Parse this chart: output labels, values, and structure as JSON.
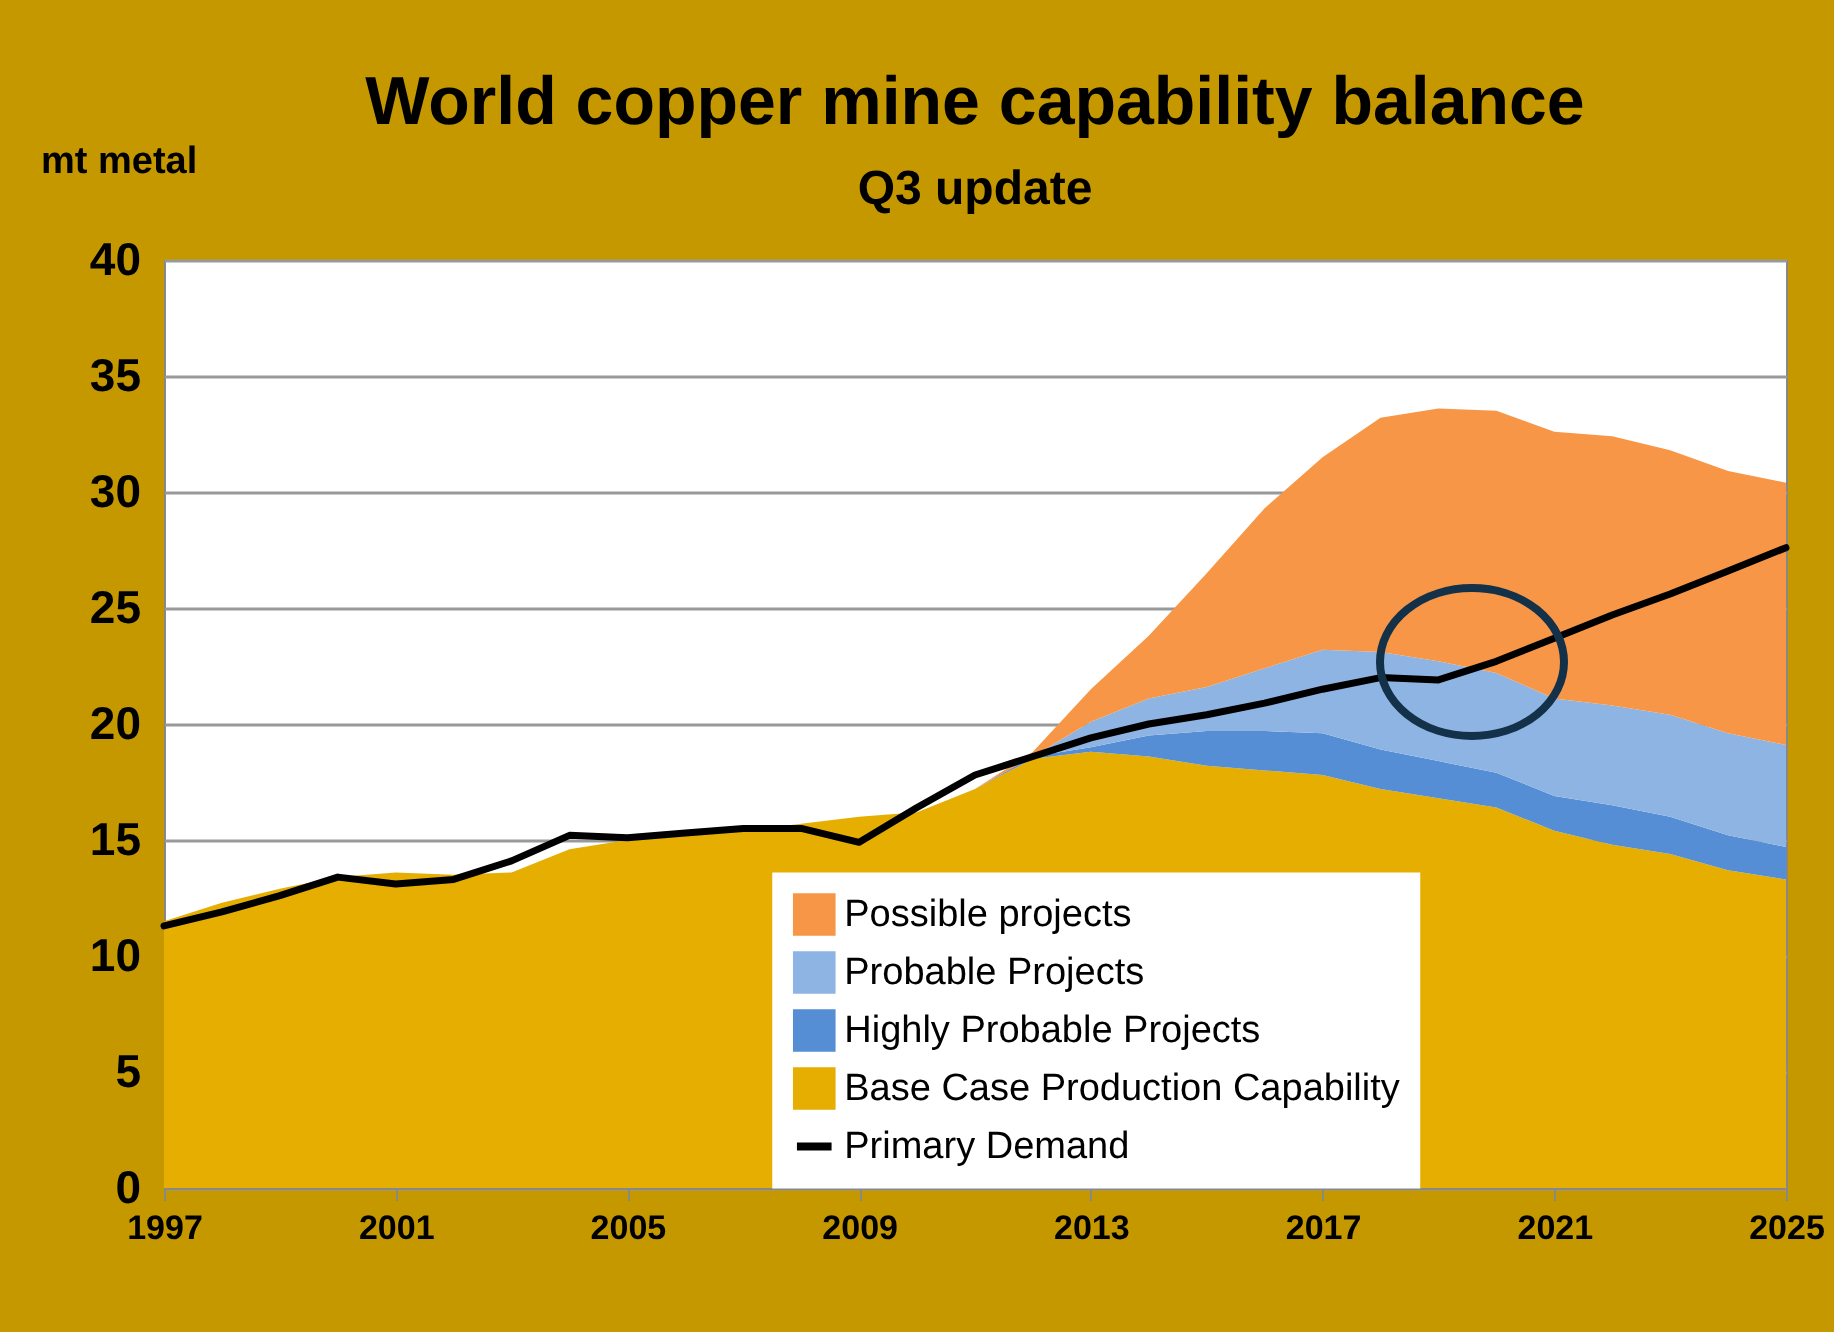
{
  "chart_data": {
    "type": "area",
    "title": "World copper mine capability balance",
    "subtitle": "Q3 update",
    "ylabel": "mt metal",
    "x": [
      1997,
      1998,
      1999,
      2000,
      2001,
      2002,
      2003,
      2004,
      2005,
      2006,
      2007,
      2008,
      2009,
      2010,
      2011,
      2012,
      2013,
      2014,
      2015,
      2016,
      2017,
      2018,
      2019,
      2020,
      2021,
      2022,
      2023,
      2024,
      2025
    ],
    "stacked": true,
    "series": [
      {
        "name": "Base Case Production Capability",
        "color": "#e5ae00",
        "values": [
          11.5,
          12.3,
          12.9,
          13.4,
          13.6,
          13.5,
          13.6,
          14.6,
          15.0,
          15.2,
          15.4,
          15.7,
          16.0,
          16.2,
          17.2,
          18.5,
          18.8,
          18.6,
          18.2,
          18.0,
          17.8,
          17.2,
          16.8,
          16.4,
          15.4,
          14.8,
          14.4,
          13.7,
          13.3
        ]
      },
      {
        "name": "Highly Probable Projects",
        "color": "#558ed5",
        "values": [
          0,
          0,
          0,
          0,
          0,
          0,
          0,
          0,
          0,
          0,
          0,
          0,
          0,
          0,
          0,
          0.1,
          0.2,
          0.9,
          1.5,
          1.7,
          1.8,
          1.7,
          1.6,
          1.5,
          1.5,
          1.7,
          1.6,
          1.5,
          1.4
        ]
      },
      {
        "name": "Probable Projects",
        "color": "#8eb4e3",
        "values": [
          0,
          0,
          0,
          0,
          0,
          0,
          0,
          0,
          0,
          0,
          0,
          0,
          0,
          0,
          0,
          0,
          1.1,
          1.6,
          1.9,
          2.7,
          3.6,
          4.2,
          4.3,
          4.3,
          4.2,
          4.3,
          4.4,
          4.4,
          4.4
        ]
      },
      {
        "name": "Possible projects",
        "color": "#f79646",
        "values": [
          0,
          0,
          0,
          0,
          0,
          0,
          0,
          0,
          0,
          0,
          0,
          0,
          0,
          0,
          0,
          0.2,
          1.4,
          2.7,
          4.9,
          6.9,
          8.3,
          10.1,
          10.9,
          11.3,
          11.5,
          11.6,
          11.4,
          11.3,
          11.3
        ]
      },
      {
        "name": "Primary Demand",
        "type": "line",
        "color": "#000000",
        "values": [
          11.3,
          11.9,
          12.6,
          13.4,
          13.1,
          13.3,
          14.1,
          15.2,
          15.1,
          15.3,
          15.5,
          15.5,
          14.9,
          16.4,
          17.8,
          18.6,
          19.4,
          20.0,
          20.4,
          20.9,
          21.5,
          22.0,
          21.9,
          22.7,
          23.7,
          24.7,
          25.6,
          26.6,
          27.6
        ]
      }
    ],
    "xlim": [
      1997,
      2025
    ],
    "xticks": [
      1997,
      2001,
      2005,
      2009,
      2013,
      2017,
      2021,
      2025
    ],
    "ylim": [
      0,
      40
    ],
    "yticks": [
      0,
      5,
      10,
      15,
      20,
      25,
      30,
      35,
      40
    ],
    "grid": "y",
    "legend": "bottom right"
  }
}
